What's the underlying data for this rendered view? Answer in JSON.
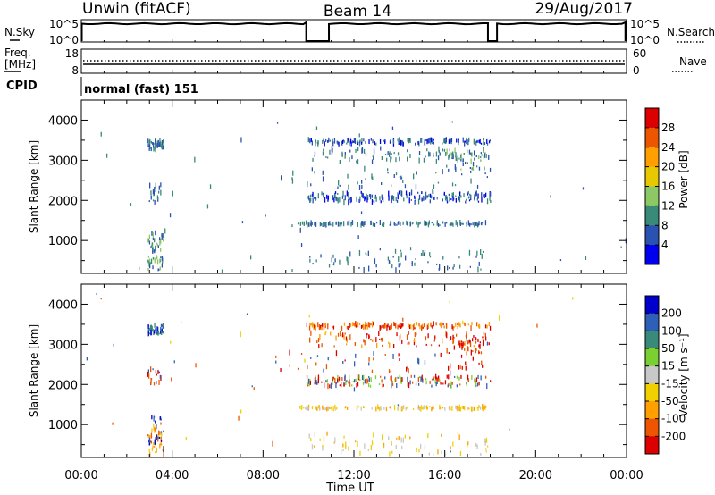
{
  "header": {
    "station": "Unwin (fitACF)",
    "beam": "Beam 14",
    "date": "29/Aug/2017"
  },
  "sky_panel": {
    "left_label": "N.Sky",
    "right_label": "N.Search",
    "left_ticks": [
      "10^5",
      "10^0"
    ],
    "right_ticks": [
      "10^5",
      "10^0"
    ]
  },
  "freq_panel": {
    "left_label_1": "Freq.",
    "left_label_2": "[MHz]",
    "right_label": "Nave",
    "left_ticks": [
      "18",
      "8"
    ],
    "right_ticks": [
      "60",
      "0"
    ]
  },
  "cpid_panel": {
    "label": "CPID",
    "mode_text": "normal (fast) 151"
  },
  "x_axis": {
    "label": "Time UT",
    "ticks": [
      "00:00",
      "04:00",
      "08:00",
      "12:00",
      "16:00",
      "20:00",
      "00:00"
    ],
    "range_hours": [
      0,
      24
    ]
  },
  "chart_data": [
    {
      "type": "heatmap",
      "name": "power",
      "ylabel": "Slant Range [km]",
      "yticks": [
        1000,
        2000,
        3000,
        4000
      ],
      "ylim": [
        180,
        4500
      ],
      "colorbar_label": "Power [dB]",
      "colorbar_levels": [
        "28",
        "24",
        "20",
        "16",
        "12",
        "8",
        "4"
      ],
      "colors": [
        "#dd0000",
        "#ee5500",
        "#ffa000",
        "#e8c800",
        "#8cc864",
        "#3a8a7a",
        "#2a52b0",
        "#0000ee"
      ],
      "scatter_bands": [
        {
          "t": [
            2.9,
            3.6
          ],
          "r": [
            3250,
            3500
          ],
          "n": 45,
          "c": [
            5,
            6
          ]
        },
        {
          "t": [
            2.9,
            3.6
          ],
          "r": [
            250,
            1200
          ],
          "n": 60,
          "c": [
            5,
            6,
            4
          ]
        },
        {
          "t": [
            2.9,
            3.5
          ],
          "r": [
            1950,
            2400
          ],
          "n": 18,
          "c": [
            6,
            5
          ]
        },
        {
          "t": [
            9.9,
            18.0
          ],
          "r": [
            3400,
            3520
          ],
          "n": 140,
          "c": [
            6,
            5,
            7
          ]
        },
        {
          "t": [
            10.0,
            18.0
          ],
          "r": [
            2950,
            3300
          ],
          "n": 90,
          "c": [
            6,
            5
          ]
        },
        {
          "t": [
            9.9,
            18.0
          ],
          "r": [
            1950,
            2200
          ],
          "n": 170,
          "c": [
            6,
            5,
            7
          ]
        },
        {
          "t": [
            9.5,
            17.8
          ],
          "r": [
            1380,
            1450
          ],
          "n": 130,
          "c": [
            6,
            5
          ]
        },
        {
          "t": [
            10.0,
            18.0
          ],
          "r": [
            250,
            800
          ],
          "n": 70,
          "c": [
            6,
            5
          ]
        },
        {
          "t": [
            8.5,
            18.0
          ],
          "r": [
            2300,
            2800
          ],
          "n": 50,
          "c": [
            6,
            5
          ]
        },
        {
          "t": [
            16.0,
            17.8
          ],
          "r": [
            2750,
            3250
          ],
          "n": 40,
          "c": [
            6,
            5,
            4
          ]
        },
        {
          "t": [
            0.2,
            24.0
          ],
          "r": [
            200,
            4300
          ],
          "n": 35,
          "c": [
            6,
            5
          ]
        }
      ]
    },
    {
      "type": "heatmap",
      "name": "velocity",
      "ylabel": "Slant Range [km]",
      "yticks": [
        1000,
        2000,
        3000,
        4000
      ],
      "ylim": [
        180,
        4500
      ],
      "colorbar_label": "Velocity [m s⁻¹]",
      "colorbar_levels": [
        "200",
        "100",
        "50",
        "15",
        "-15",
        "-50",
        "-100",
        "-200"
      ],
      "colors": [
        "#0000cc",
        "#2e60b8",
        "#3a8a7a",
        "#7ad030",
        "#c8c8c8",
        "#f0d000",
        "#ffa000",
        "#ee5500",
        "#dd0000"
      ],
      "scatter_bands": [
        {
          "t": [
            2.9,
            3.6
          ],
          "r": [
            3250,
            3500
          ],
          "n": 45,
          "c": [
            0,
            1,
            2
          ]
        },
        {
          "t": [
            2.9,
            3.6
          ],
          "r": [
            250,
            1200
          ],
          "n": 60,
          "c": [
            5,
            6,
            0,
            1,
            7
          ]
        },
        {
          "t": [
            2.9,
            3.5
          ],
          "r": [
            1950,
            2400
          ],
          "n": 18,
          "c": [
            7,
            8,
            1
          ]
        },
        {
          "t": [
            9.9,
            18.0
          ],
          "r": [
            3400,
            3520
          ],
          "n": 140,
          "c": [
            7,
            8,
            6
          ]
        },
        {
          "t": [
            10.0,
            18.0
          ],
          "r": [
            2950,
            3300
          ],
          "n": 90,
          "c": [
            8,
            7,
            6
          ]
        },
        {
          "t": [
            9.9,
            18.0
          ],
          "r": [
            1950,
            2200
          ],
          "n": 170,
          "c": [
            8,
            7,
            3,
            1
          ]
        },
        {
          "t": [
            9.5,
            17.8
          ],
          "r": [
            1380,
            1450
          ],
          "n": 130,
          "c": [
            5,
            6,
            4
          ]
        },
        {
          "t": [
            10.0,
            18.0
          ],
          "r": [
            250,
            800
          ],
          "n": 70,
          "c": [
            5,
            6,
            4
          ]
        },
        {
          "t": [
            8.5,
            18.0
          ],
          "r": [
            2300,
            2800
          ],
          "n": 50,
          "c": [
            7,
            8,
            1
          ]
        },
        {
          "t": [
            16.0,
            17.8
          ],
          "r": [
            2750,
            3250
          ],
          "n": 40,
          "c": [
            8,
            7
          ]
        },
        {
          "t": [
            0.2,
            24.0
          ],
          "r": [
            200,
            4300
          ],
          "n": 35,
          "c": [
            5,
            1,
            7
          ]
        }
      ]
    }
  ]
}
